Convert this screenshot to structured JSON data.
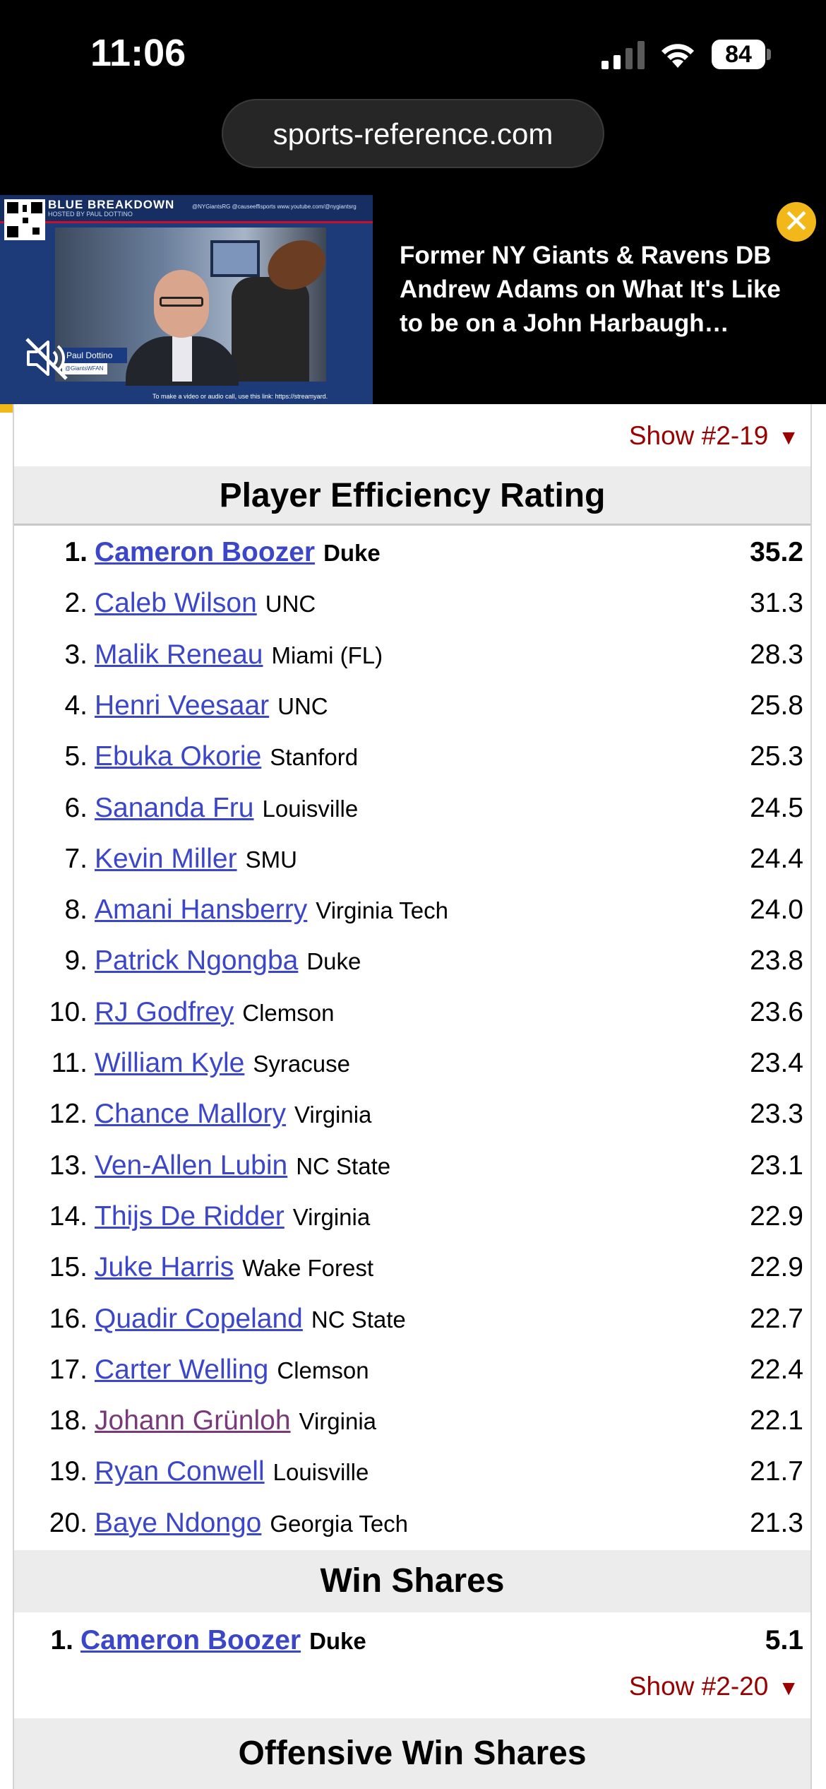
{
  "status_bar": {
    "time": "11:06",
    "battery": "84",
    "icons": [
      "cellular-signal-icon",
      "wifi-icon",
      "battery-icon"
    ]
  },
  "browser": {
    "url": "sports-reference.com"
  },
  "ad": {
    "video": {
      "show_title": "BLUE BREAKDOWN",
      "host_line": "HOSTED BY PAUL DOTTINO",
      "social_line": "@NYGiantsRG   @causeeffisports   www.youtube.com/@nygiantsrg",
      "presenter_name": "Paul Dottino",
      "presenter_handle": "@GiantsWFAN",
      "caption": "To make a video or audio call, use this link: https://streamyard."
    },
    "headline": "Former NY Giants & Ravens DB Andrew Adams on What It's Like to be on a John Harbaugh…",
    "close_icon": "close-icon",
    "mute_icon": "muted-speaker-icon",
    "accent_color": "#f2b81a"
  },
  "content": {
    "top_show_link": "Show #2-19",
    "toggle_icon": "triangle-down-icon",
    "link_color": "#3b46c8",
    "visited_link_color": "#7a3a7a",
    "show_link_color": "#990000",
    "per_section": {
      "title": "Player Efficiency Rating",
      "rows": [
        {
          "rank": "1.",
          "name": "Cameron Boozer",
          "team": "Duke",
          "value": "35.2"
        },
        {
          "rank": "2.",
          "name": "Caleb Wilson",
          "team": "UNC",
          "value": "31.3"
        },
        {
          "rank": "3.",
          "name": "Malik Reneau",
          "team": "Miami (FL)",
          "value": "28.3"
        },
        {
          "rank": "4.",
          "name": "Henri Veesaar",
          "team": "UNC",
          "value": "25.8"
        },
        {
          "rank": "5.",
          "name": "Ebuka Okorie",
          "team": "Stanford",
          "value": "25.3"
        },
        {
          "rank": "6.",
          "name": "Sananda Fru",
          "team": "Louisville",
          "value": "24.5"
        },
        {
          "rank": "7.",
          "name": "Kevin Miller",
          "team": "SMU",
          "value": "24.4"
        },
        {
          "rank": "8.",
          "name": "Amani Hansberry",
          "team": "Virginia Tech",
          "value": "24.0"
        },
        {
          "rank": "9.",
          "name": "Patrick Ngongba",
          "team": "Duke",
          "value": "23.8"
        },
        {
          "rank": "10.",
          "name": "RJ Godfrey",
          "team": "Clemson",
          "value": "23.6"
        },
        {
          "rank": "11.",
          "name": "William Kyle",
          "team": "Syracuse",
          "value": "23.4"
        },
        {
          "rank": "12.",
          "name": "Chance Mallory",
          "team": "Virginia",
          "value": "23.3"
        },
        {
          "rank": "13.",
          "name": "Ven-Allen Lubin",
          "team": "NC State",
          "value": "23.1"
        },
        {
          "rank": "14.",
          "name": "Thijs De Ridder",
          "team": "Virginia",
          "value": "22.9"
        },
        {
          "rank": "15.",
          "name": "Juke Harris",
          "team": "Wake Forest",
          "value": "22.9"
        },
        {
          "rank": "16.",
          "name": "Quadir Copeland",
          "team": "NC State",
          "value": "22.7"
        },
        {
          "rank": "17.",
          "name": "Carter Welling",
          "team": "Clemson",
          "value": "22.4"
        },
        {
          "rank": "18.",
          "name": "Johann Grünloh",
          "team": "Virginia",
          "value": "22.1"
        },
        {
          "rank": "19.",
          "name": "Ryan Conwell",
          "team": "Louisville",
          "value": "21.7"
        },
        {
          "rank": "20.",
          "name": "Baye Ndongo",
          "team": "Georgia Tech",
          "value": "21.3"
        }
      ]
    },
    "ws_section": {
      "title": "Win Shares",
      "rows": [
        {
          "rank": "1.",
          "name": "Cameron Boozer",
          "team": "Duke",
          "value": "5.1"
        }
      ],
      "show_link": "Show #2-20"
    },
    "ows_section": {
      "title": "Offensive Win Shares"
    }
  }
}
